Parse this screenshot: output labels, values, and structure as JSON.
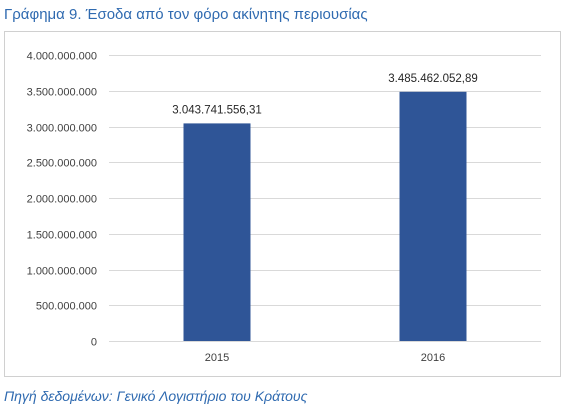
{
  "figure_title": "Γράφημα 9. Έσοδα από τον φόρο ακίνητης περιουσίας",
  "source_note": "Πηγή δεδομένων: Γενικό Λογιστήριο του Κράτους",
  "colors": {
    "title": "#2f6ab0",
    "bar": "#2f5597",
    "gridline": "#d9d9d9"
  },
  "chart_data": {
    "type": "bar",
    "categories": [
      "2015",
      "2016"
    ],
    "values": [
      3043741556.31,
      3485462052.89
    ],
    "data_labels": [
      "3.043.741.556,31",
      "3.485.462.052,89"
    ],
    "y_tick_labels": [
      "0",
      "500.000.000",
      "1.000.000.000",
      "1.500.000.000",
      "2.000.000.000",
      "2.500.000.000",
      "3.000.000.000",
      "3.500.000.000",
      "4.000.000.000"
    ],
    "y_ticks": [
      0,
      500000000,
      1000000000,
      1500000000,
      2000000000,
      2500000000,
      3000000000,
      3500000000,
      4000000000
    ],
    "ylim": [
      0,
      4000000000
    ],
    "grid": true,
    "legend": "none"
  }
}
